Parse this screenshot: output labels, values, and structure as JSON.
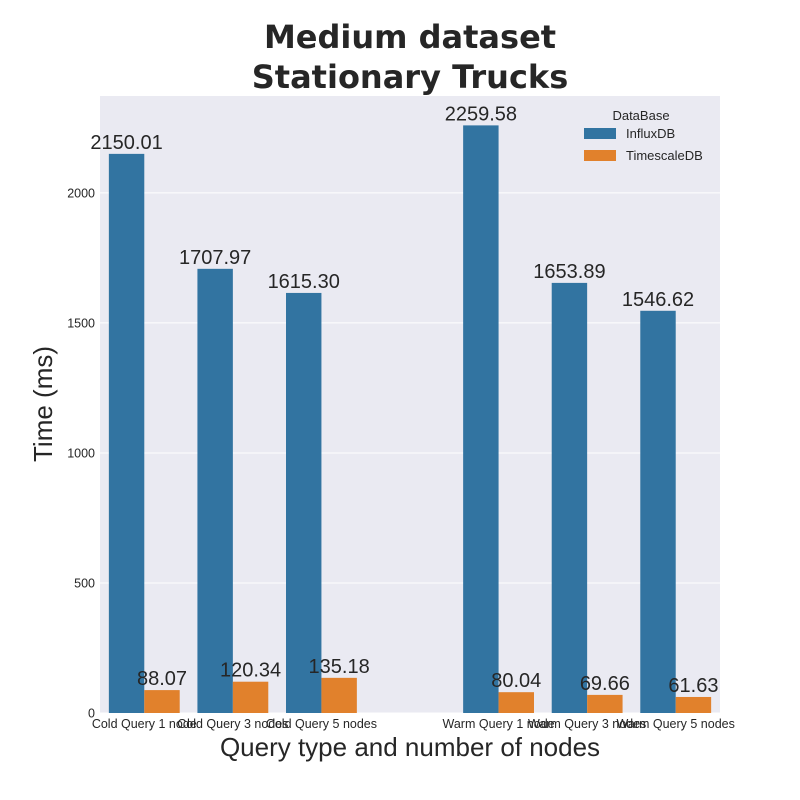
{
  "chart_data": {
    "type": "bar",
    "title_lines": [
      "Medium dataset",
      "Stationary Trucks"
    ],
    "xlabel": "Query type and number of nodes",
    "ylabel": "Time (ms)",
    "categories": [
      "Cold Query 1 node",
      "Cold Query 3 nodes",
      "Cold Query 5 nodes",
      "",
      "Warm Query 1 node",
      "Warm Query 3 nodes",
      "Warm Query 5 nodes"
    ],
    "series": [
      {
        "name": "InfluxDB",
        "color": "#3274a1",
        "values": [
          2150.01,
          1707.97,
          1615.3,
          null,
          2259.58,
          1653.89,
          1546.62
        ],
        "labels": [
          "2150.01",
          "1707.97",
          "1615.30",
          "",
          "2259.58",
          "1653.89",
          "1546.62"
        ]
      },
      {
        "name": "TimescaleDB",
        "color": "#e1812c",
        "values": [
          88.07,
          120.34,
          135.18,
          null,
          80.04,
          69.66,
          61.63
        ],
        "labels": [
          "88.07",
          "120.34",
          "135.18",
          "",
          "80.04",
          "69.66",
          "61.63"
        ]
      }
    ],
    "yticks": [
      0,
      500,
      1000,
      1500,
      2000
    ],
    "ylim": [
      0,
      2372.56
    ],
    "grid": true,
    "legend": {
      "title": "DataBase",
      "placement": "top-right"
    },
    "style": {
      "plot_background": "#eaeaf2",
      "grid_color": "#ffffff"
    }
  }
}
